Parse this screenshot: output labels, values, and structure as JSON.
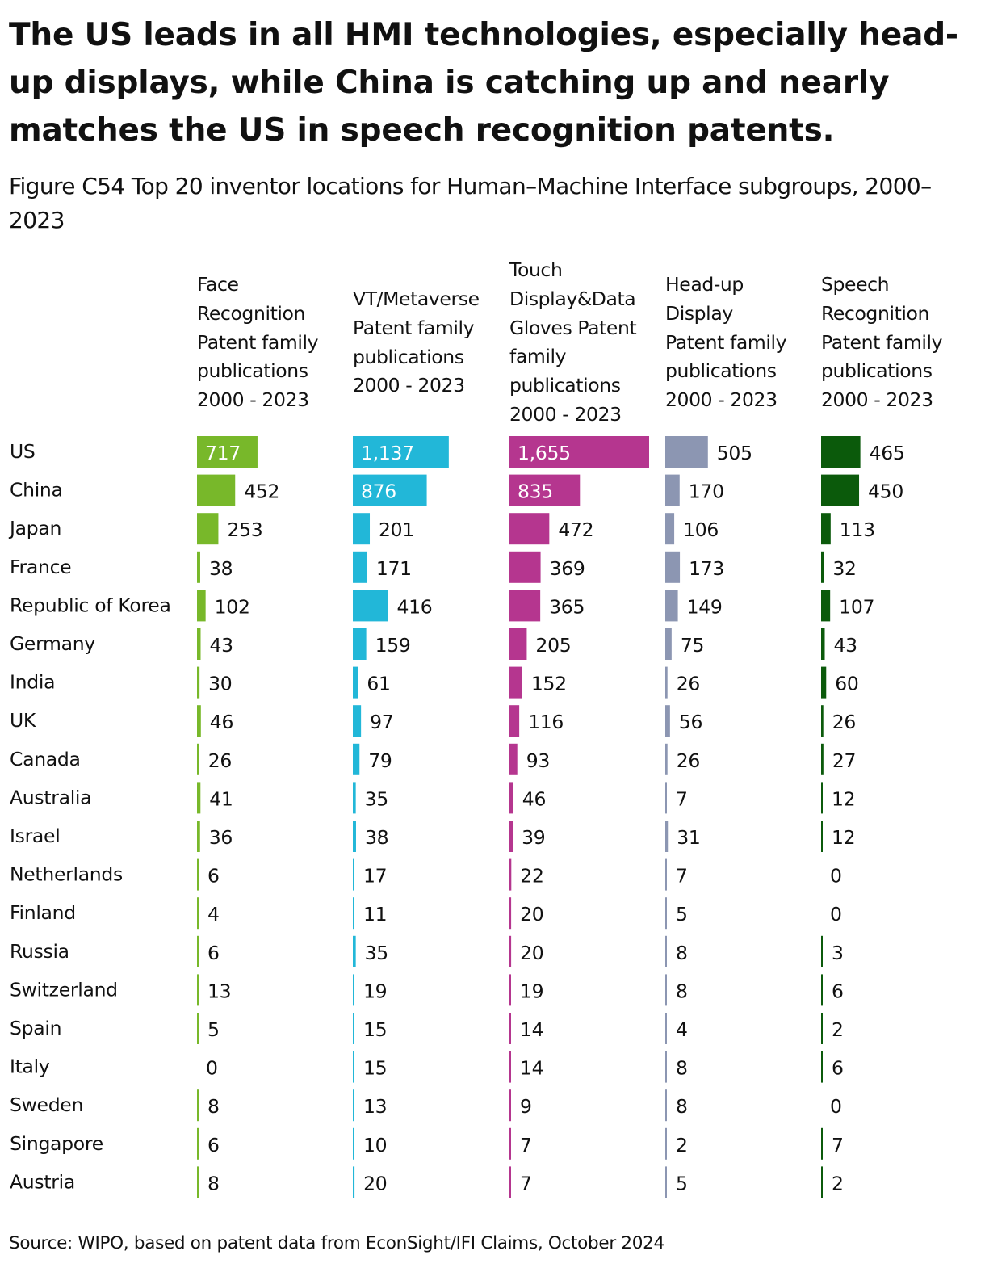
{
  "title": "The US leads in all HMI technologies, especially head-up displays, while China is catching up and nearly matches the US in speech recognition patents.",
  "subtitle": "Figure C54 Top 20 inventor locations for Human–Machine Interface subgroups, 2000–2023",
  "source": "Source: WIPO, based on patent data from EconSight/IFI Claims, October 2024",
  "chart_data": {
    "type": "bar",
    "orientation": "horizontal",
    "categories": [
      "US",
      "China",
      "Japan",
      "France",
      "Republic of Korea",
      "Germany",
      "India",
      "UK",
      "Canada",
      "Australia",
      "Israel",
      "Netherlands",
      "Finland",
      "Russia",
      "Switzerland",
      "Spain",
      "Italy",
      "Sweden",
      "Singapore",
      "Austria"
    ],
    "series": [
      {
        "name": "Face Recognition Patent family publications 2000 - 2023",
        "header_lines": [
          "Face",
          "Recognition",
          "Patent family",
          "publications",
          "2000 - 2023"
        ],
        "color": "#78B82A",
        "values": [
          717,
          452,
          253,
          38,
          102,
          43,
          30,
          46,
          26,
          41,
          36,
          6,
          4,
          6,
          13,
          5,
          0,
          8,
          6,
          8
        ],
        "labels": [
          "717",
          "452",
          "253",
          "38",
          "102",
          "43",
          "30",
          "46",
          "26",
          "41",
          "36",
          "6",
          "4",
          "6",
          "13",
          "5",
          "0",
          "8",
          "6",
          "8"
        ]
      },
      {
        "name": "VT/Metaverse Patent family publications 2000 - 2023",
        "header_lines": [
          "VT/Metaverse",
          "Patent family",
          "publications",
          "2000 - 2023"
        ],
        "color": "#22B7D8",
        "values": [
          1137,
          876,
          201,
          171,
          416,
          159,
          61,
          97,
          79,
          35,
          38,
          17,
          11,
          35,
          19,
          15,
          15,
          13,
          10,
          20
        ],
        "labels": [
          "1,137",
          "876",
          "201",
          "171",
          "416",
          "159",
          "61",
          "97",
          "79",
          "35",
          "38",
          "17",
          "11",
          "35",
          "19",
          "15",
          "15",
          "13",
          "10",
          "20"
        ]
      },
      {
        "name": "Touch Display&Data Gloves Patent family publications 2000 - 2023",
        "header_lines": [
          "Touch",
          "Display&Data",
          "Gloves Patent",
          "family",
          "publications",
          "2000 - 2023"
        ],
        "color": "#B5368F",
        "values": [
          1655,
          835,
          472,
          369,
          365,
          205,
          152,
          116,
          93,
          46,
          39,
          22,
          20,
          20,
          19,
          14,
          14,
          9,
          7,
          7
        ],
        "labels": [
          "1,655",
          "835",
          "472",
          "369",
          "365",
          "205",
          "152",
          "116",
          "93",
          "46",
          "39",
          "22",
          "20",
          "20",
          "19",
          "14",
          "14",
          "9",
          "7",
          "7"
        ]
      },
      {
        "name": "Head-up Display Patent family publications 2000 - 2023",
        "header_lines": [
          "Head-up",
          "Display",
          "Patent family",
          "publications",
          "2000 - 2023"
        ],
        "color": "#8C96B2",
        "values": [
          505,
          170,
          106,
          173,
          149,
          75,
          26,
          56,
          26,
          7,
          31,
          7,
          5,
          8,
          8,
          4,
          8,
          8,
          2,
          5
        ],
        "labels": [
          "505",
          "170",
          "106",
          "173",
          "149",
          "75",
          "26",
          "56",
          "26",
          "7",
          "31",
          "7",
          "5",
          "8",
          "8",
          "4",
          "8",
          "8",
          "2",
          "5"
        ]
      },
      {
        "name": "Speech Recognition Patent family publications 2000 - 2023",
        "header_lines": [
          "Speech",
          "Recognition",
          "Patent family",
          "publications",
          "2000 - 2023"
        ],
        "color": "#0B5A0B",
        "values": [
          465,
          450,
          113,
          32,
          107,
          43,
          60,
          26,
          27,
          12,
          12,
          0,
          0,
          3,
          6,
          2,
          6,
          0,
          7,
          2
        ],
        "labels": [
          "465",
          "450",
          "113",
          "32",
          "107",
          "43",
          "60",
          "26",
          "27",
          "12",
          "12",
          "0",
          "0",
          "3",
          "6",
          "2",
          "6",
          "0",
          "7",
          "2"
        ]
      }
    ]
  }
}
